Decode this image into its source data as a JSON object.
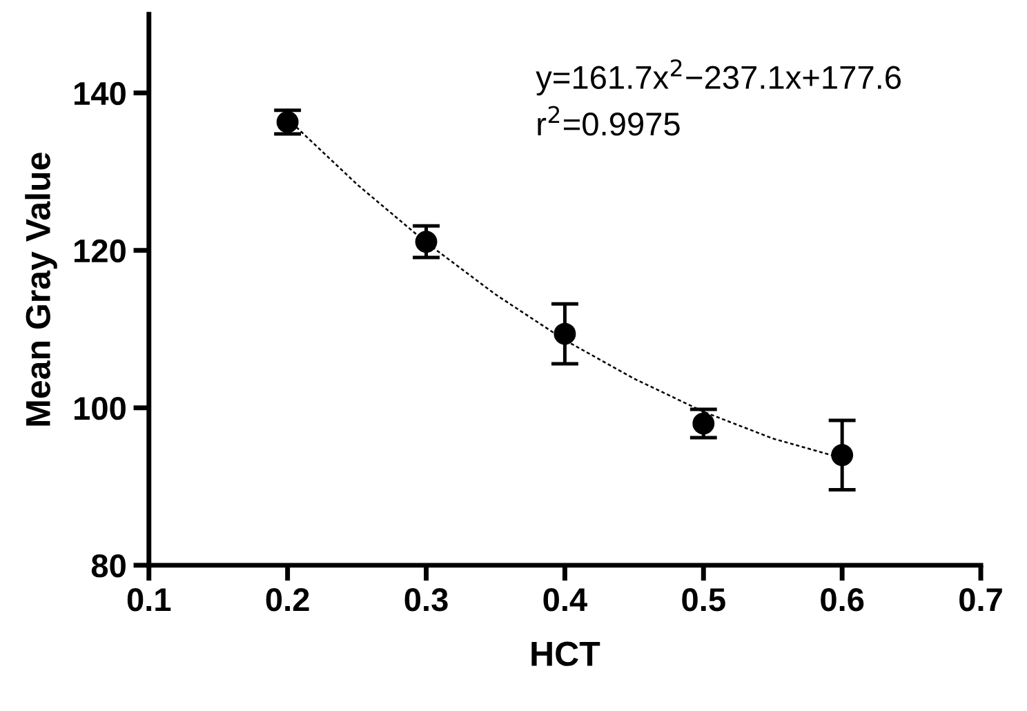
{
  "chart_data": {
    "type": "scatter",
    "xlabel": "HCT",
    "ylabel": "Mean Gray Value",
    "xlim": [
      0.1,
      0.7
    ],
    "xticks": [
      0.1,
      0.2,
      0.3,
      0.4,
      0.5,
      0.6,
      0.7
    ],
    "ylim": [
      80,
      150
    ],
    "yticks": [
      80,
      100,
      120,
      140
    ],
    "grid": false,
    "legend": false,
    "series": [
      {
        "color": "#000000",
        "marker": "circle",
        "x": [
          0.2,
          0.3,
          0.4,
          0.5,
          0.6
        ],
        "values": [
          136.3,
          121.1,
          109.4,
          98.0,
          94.0
        ],
        "errors": [
          1.5,
          2.0,
          3.8,
          1.8,
          4.4
        ]
      },
      {
        "type": "line",
        "color": "#000000",
        "line_style": "dotted",
        "marker": "none",
        "x": [
          0.2,
          0.25,
          0.3,
          0.35,
          0.4,
          0.45,
          0.5,
          0.55,
          0.6
        ],
        "values": [
          136.7,
          128.4,
          121.0,
          114.4,
          108.6,
          103.7,
          99.5,
          96.1,
          93.6
        ]
      }
    ],
    "annotations": [
      "y=161.7x$^{2}$−237.1x+177.6",
      "r$^{2}$=0.9975"
    ]
  }
}
